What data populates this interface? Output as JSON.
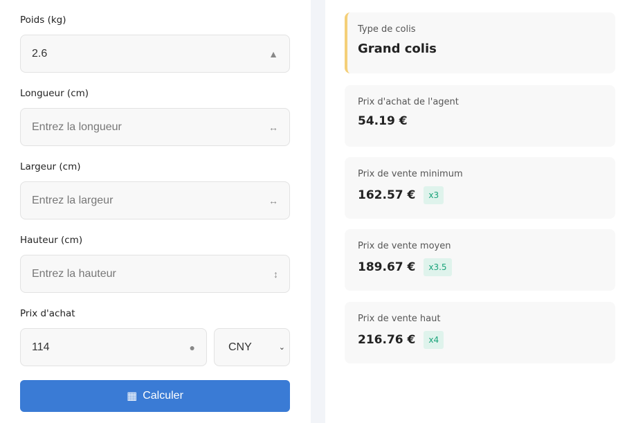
{
  "form": {
    "weight": {
      "label": "Poids (kg)",
      "value": "2.6",
      "icon": "weight-icon"
    },
    "length": {
      "label": "Longueur (cm)",
      "placeholder": "Entrez la longueur",
      "icon": "arrows-horizontal-icon"
    },
    "width": {
      "label": "Largeur (cm)",
      "placeholder": "Entrez la largeur",
      "icon": "arrows-horizontal-icon"
    },
    "height": {
      "label": "Hauteur (cm)",
      "placeholder": "Entrez la hauteur",
      "icon": "arrows-vertical-icon"
    },
    "price": {
      "label": "Prix d'achat",
      "value": "114",
      "icon": "tag-icon"
    },
    "currency": {
      "selected": "CNY"
    },
    "submit": {
      "label": "Calculer",
      "icon": "calculator-icon"
    }
  },
  "results": [
    {
      "title": "Type de colis",
      "value": "Grand colis"
    },
    {
      "title": "Prix d'achat de l'agent",
      "value": "54.19 €"
    },
    {
      "title": "Prix de vente minimum",
      "value": "162.57 €",
      "badge": "x3"
    },
    {
      "title": "Prix de vente moyen",
      "value": "189.67 €",
      "badge": "x3.5"
    },
    {
      "title": "Prix de vente haut",
      "value": "216.76 €",
      "badge": "x4"
    }
  ],
  "colors": {
    "accent": "#3a7bd5",
    "highlight": "#f4cf78",
    "badge": "#1aa37a"
  }
}
